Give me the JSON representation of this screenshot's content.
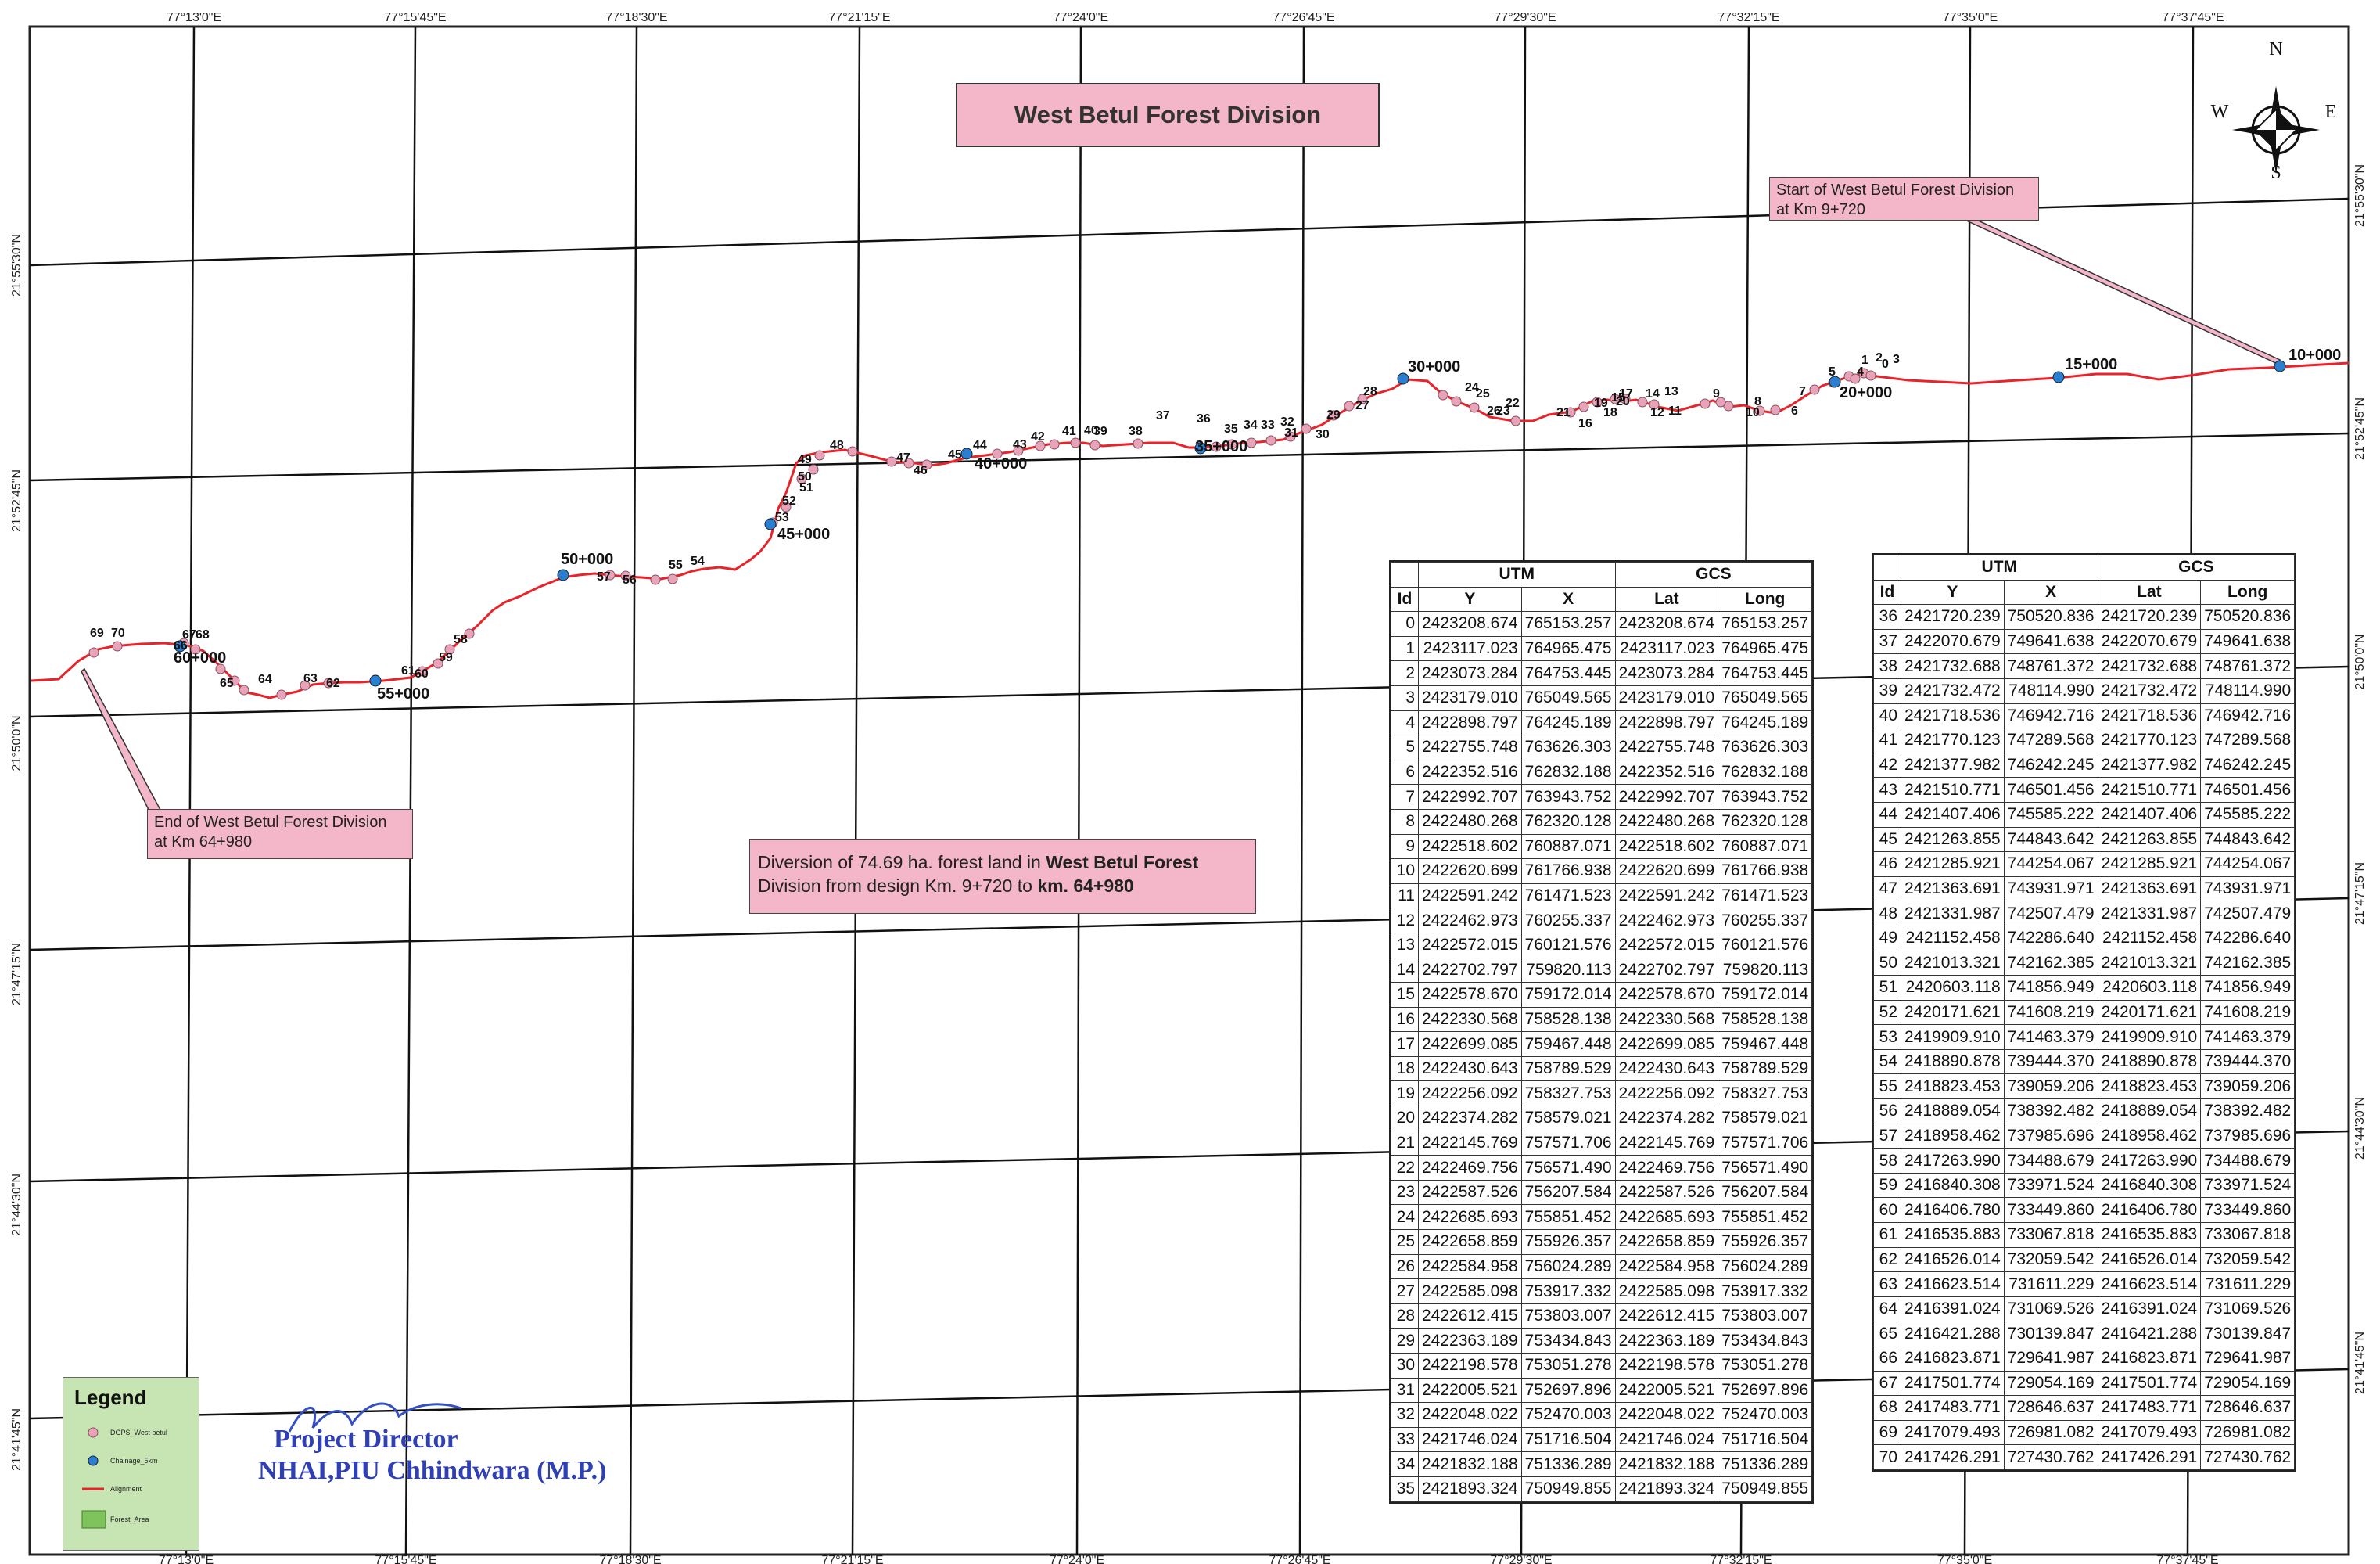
{
  "title": "West Betul Forest Division",
  "notes": {
    "start": [
      "Start of West Betul Forest Division",
      "at Km 9+720"
    ],
    "end": [
      "End of West Betul Forest Division",
      "at Km 64+980"
    ],
    "diversion_line1_a": "Diversion of 74.69 ha. forest land in ",
    "diversion_line1_b": "West Betul Forest",
    "diversion_line2_a": "Division from design Km. 9+720 to ",
    "diversion_line2_b": "km. 64+980"
  },
  "compass": {
    "n": "N",
    "s": "S",
    "e": "E",
    "w": "W"
  },
  "longitude_labels": [
    "77°13'0\"E",
    "77°15'45\"E",
    "77°18'30\"E",
    "77°21'15\"E",
    "77°24'0\"E",
    "77°26'45\"E",
    "77°29'30\"E",
    "77°32'15\"E",
    "77°35'0\"E",
    "77°37'45\"E"
  ],
  "latitude_labels_left": [
    "21°55'30\"N",
    "21°52'45\"N",
    "21°50'0\"N",
    "21°47'15\"N",
    "21°44'30\"N",
    "21°41'45\"N"
  ],
  "latitude_labels_right": [
    "21°55'30\"N",
    "21°52'45\"N",
    "21°50'0\"N",
    "21°47'15\"N",
    "21°44'30\"N",
    "21°41'45\"N"
  ],
  "chainage_labels": [
    "10+000",
    "15+000",
    "20+000",
    "30+000",
    "35+000",
    "40+000",
    "45+000",
    "50+000",
    "55+000",
    "60+000"
  ],
  "legend": {
    "title": "Legend",
    "items": [
      "DGPS_West betul",
      "Chainage_5km",
      "Alignment",
      "Forest_Area"
    ]
  },
  "signature": {
    "line1": "Project Director",
    "line2": "NHAI,PIU Chhindwara (M.P.)"
  },
  "table": {
    "group_utm": "UTM",
    "group_gcs": "GCS",
    "col_headers": [
      "Id",
      "Y",
      "X",
      "Lat",
      "Long"
    ],
    "rows_left": [
      [
        "0",
        "2423208.674",
        "765153.257",
        "2423208.674",
        "765153.257"
      ],
      [
        "1",
        "2423117.023",
        "764965.475",
        "2423117.023",
        "764965.475"
      ],
      [
        "2",
        "2423073.284",
        "764753.445",
        "2423073.284",
        "764753.445"
      ],
      [
        "3",
        "2423179.010",
        "765049.565",
        "2423179.010",
        "765049.565"
      ],
      [
        "4",
        "2422898.797",
        "764245.189",
        "2422898.797",
        "764245.189"
      ],
      [
        "5",
        "2422755.748",
        "763626.303",
        "2422755.748",
        "763626.303"
      ],
      [
        "6",
        "2422352.516",
        "762832.188",
        "2422352.516",
        "762832.188"
      ],
      [
        "7",
        "2422992.707",
        "763943.752",
        "2422992.707",
        "763943.752"
      ],
      [
        "8",
        "2422480.268",
        "762320.128",
        "2422480.268",
        "762320.128"
      ],
      [
        "9",
        "2422518.602",
        "760887.071",
        "2422518.602",
        "760887.071"
      ],
      [
        "10",
        "2422620.699",
        "761766.938",
        "2422620.699",
        "761766.938"
      ],
      [
        "11",
        "2422591.242",
        "761471.523",
        "2422591.242",
        "761471.523"
      ],
      [
        "12",
        "2422462.973",
        "760255.337",
        "2422462.973",
        "760255.337"
      ],
      [
        "13",
        "2422572.015",
        "760121.576",
        "2422572.015",
        "760121.576"
      ],
      [
        "14",
        "2422702.797",
        "759820.113",
        "2422702.797",
        "759820.113"
      ],
      [
        "15",
        "2422578.670",
        "759172.014",
        "2422578.670",
        "759172.014"
      ],
      [
        "16",
        "2422330.568",
        "758528.138",
        "2422330.568",
        "758528.138"
      ],
      [
        "17",
        "2422699.085",
        "759467.448",
        "2422699.085",
        "759467.448"
      ],
      [
        "18",
        "2422430.643",
        "758789.529",
        "2422430.643",
        "758789.529"
      ],
      [
        "19",
        "2422256.092",
        "758327.753",
        "2422256.092",
        "758327.753"
      ],
      [
        "20",
        "2422374.282",
        "758579.021",
        "2422374.282",
        "758579.021"
      ],
      [
        "21",
        "2422145.769",
        "757571.706",
        "2422145.769",
        "757571.706"
      ],
      [
        "22",
        "2422469.756",
        "756571.490",
        "2422469.756",
        "756571.490"
      ],
      [
        "23",
        "2422587.526",
        "756207.584",
        "2422587.526",
        "756207.584"
      ],
      [
        "24",
        "2422685.693",
        "755851.452",
        "2422685.693",
        "755851.452"
      ],
      [
        "25",
        "2422658.859",
        "755926.357",
        "2422658.859",
        "755926.357"
      ],
      [
        "26",
        "2422584.958",
        "756024.289",
        "2422584.958",
        "756024.289"
      ],
      [
        "27",
        "2422585.098",
        "753917.332",
        "2422585.098",
        "753917.332"
      ],
      [
        "28",
        "2422612.415",
        "753803.007",
        "2422612.415",
        "753803.007"
      ],
      [
        "29",
        "2422363.189",
        "753434.843",
        "2422363.189",
        "753434.843"
      ],
      [
        "30",
        "2422198.578",
        "753051.278",
        "2422198.578",
        "753051.278"
      ],
      [
        "31",
        "2422005.521",
        "752697.896",
        "2422005.521",
        "752697.896"
      ],
      [
        "32",
        "2422048.022",
        "752470.003",
        "2422048.022",
        "752470.003"
      ],
      [
        "33",
        "2421746.024",
        "751716.504",
        "2421746.024",
        "751716.504"
      ],
      [
        "34",
        "2421832.188",
        "751336.289",
        "2421832.188",
        "751336.289"
      ],
      [
        "35",
        "2421893.324",
        "750949.855",
        "2421893.324",
        "750949.855"
      ]
    ],
    "rows_right": [
      [
        "36",
        "2421720.239",
        "750520.836",
        "2421720.239",
        "750520.836"
      ],
      [
        "37",
        "2422070.679",
        "749641.638",
        "2422070.679",
        "749641.638"
      ],
      [
        "38",
        "2421732.688",
        "748761.372",
        "2421732.688",
        "748761.372"
      ],
      [
        "39",
        "2421732.472",
        "748114.990",
        "2421732.472",
        "748114.990"
      ],
      [
        "40",
        "2421718.536",
        "746942.716",
        "2421718.536",
        "746942.716"
      ],
      [
        "41",
        "2421770.123",
        "747289.568",
        "2421770.123",
        "747289.568"
      ],
      [
        "42",
        "2421377.982",
        "746242.245",
        "2421377.982",
        "746242.245"
      ],
      [
        "43",
        "2421510.771",
        "746501.456",
        "2421510.771",
        "746501.456"
      ],
      [
        "44",
        "2421407.406",
        "745585.222",
        "2421407.406",
        "745585.222"
      ],
      [
        "45",
        "2421263.855",
        "744843.642",
        "2421263.855",
        "744843.642"
      ],
      [
        "46",
        "2421285.921",
        "744254.067",
        "2421285.921",
        "744254.067"
      ],
      [
        "47",
        "2421363.691",
        "743931.971",
        "2421363.691",
        "743931.971"
      ],
      [
        "48",
        "2421331.987",
        "742507.479",
        "2421331.987",
        "742507.479"
      ],
      [
        "49",
        "2421152.458",
        "742286.640",
        "2421152.458",
        "742286.640"
      ],
      [
        "50",
        "2421013.321",
        "742162.385",
        "2421013.321",
        "742162.385"
      ],
      [
        "51",
        "2420603.118",
        "741856.949",
        "2420603.118",
        "741856.949"
      ],
      [
        "52",
        "2420171.621",
        "741608.219",
        "2420171.621",
        "741608.219"
      ],
      [
        "53",
        "2419909.910",
        "741463.379",
        "2419909.910",
        "741463.379"
      ],
      [
        "54",
        "2418890.878",
        "739444.370",
        "2418890.878",
        "739444.370"
      ],
      [
        "55",
        "2418823.453",
        "739059.206",
        "2418823.453",
        "739059.206"
      ],
      [
        "56",
        "2418889.054",
        "738392.482",
        "2418889.054",
        "738392.482"
      ],
      [
        "57",
        "2418958.462",
        "737985.696",
        "2418958.462",
        "737985.696"
      ],
      [
        "58",
        "2417263.990",
        "734488.679",
        "2417263.990",
        "734488.679"
      ],
      [
        "59",
        "2416840.308",
        "733971.524",
        "2416840.308",
        "733971.524"
      ],
      [
        "60",
        "2416406.780",
        "733449.860",
        "2416406.780",
        "733449.860"
      ],
      [
        "61",
        "2416535.883",
        "733067.818",
        "2416535.883",
        "733067.818"
      ],
      [
        "62",
        "2416526.014",
        "732059.542",
        "2416526.014",
        "732059.542"
      ],
      [
        "63",
        "2416623.514",
        "731611.229",
        "2416623.514",
        "731611.229"
      ],
      [
        "64",
        "2416391.024",
        "731069.526",
        "2416391.024",
        "731069.526"
      ],
      [
        "65",
        "2416421.288",
        "730139.847",
        "2416421.288",
        "730139.847"
      ],
      [
        "66",
        "2416823.871",
        "729641.987",
        "2416823.871",
        "729641.987"
      ],
      [
        "67",
        "2417501.774",
        "729054.169",
        "2417501.774",
        "729054.169"
      ],
      [
        "68",
        "2417483.771",
        "728646.637",
        "2417483.771",
        "728646.637"
      ],
      [
        "69",
        "2417079.493",
        "726981.082",
        "2417079.493",
        "726981.082"
      ],
      [
        "70",
        "2417426.291",
        "727430.762",
        "2417426.291",
        "727430.762"
      ]
    ]
  },
  "colors": {
    "alignment": "#e8232a",
    "dgps_point": "#e8a3b8",
    "chainage_point": "#2a7fd1",
    "callout_fill": "#f4b6c9",
    "legend_fill": "#c7e4b3",
    "signature": "#2f3fb4"
  }
}
